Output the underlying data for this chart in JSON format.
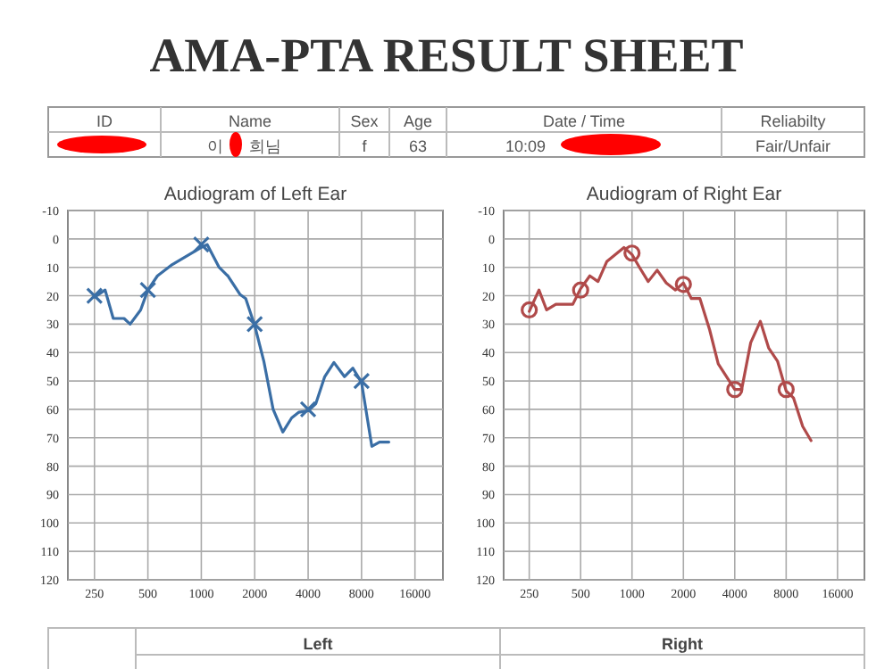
{
  "chart_data": [
    {
      "type": "other",
      "title": "AMA-PTA RESULT SHEET",
      "categories": [
        "ID",
        "Name",
        "Sex",
        "Age",
        "Date / Time",
        "Reliabilty"
      ],
      "cell_labels": [
        [
          null,
          "이 희님",
          "f",
          "63",
          "10:09",
          "Fair/Unfair"
        ]
      ]
    },
    {
      "type": "line",
      "title": "Audiogram of Left Ear",
      "log": "x",
      "grid": true,
      "ylim": [
        120,
        -10
      ],
      "yticks": [
        -10,
        0,
        10,
        20,
        30,
        40,
        50,
        60,
        70,
        80,
        90,
        100,
        110,
        120
      ],
      "xlim": [
        177,
        23000
      ],
      "xticks": [
        250,
        500,
        1000,
        2000,
        4000,
        8000,
        16000
      ],
      "series": [
        {
          "type": "line",
          "color": "#3a6ea5",
          "marker": "none",
          "x": [
            250,
            287,
            319,
            367,
            397,
            455,
            500,
            566,
            686,
            1000,
            1080,
            1260,
            1410,
            1650,
            1780,
            2000,
            2250,
            2540,
            2880,
            3230,
            3550,
            4000,
            4420,
            4960,
            5590,
            6410,
            7150,
            8000,
            9140,
            10100,
            11400
          ],
          "values": [
            20.5,
            18,
            28,
            28,
            30,
            25,
            18,
            13,
            9,
            3,
            2,
            10,
            13,
            19.5,
            21,
            30.5,
            43,
            60,
            68,
            63,
            61,
            60.5,
            58,
            48.5,
            43.5,
            48.5,
            45.5,
            50.5,
            73,
            71.5,
            71.5
          ]
        },
        {
          "type": "scatter",
          "color": "#3a6ea5",
          "marker": "cross",
          "x": [
            250,
            500,
            1000,
            2000,
            4000,
            8000
          ],
          "values": [
            20,
            18,
            2,
            30,
            60,
            50
          ]
        }
      ]
    },
    {
      "type": "line",
      "title": "Audiogram of Right Ear",
      "log": "x",
      "grid": true,
      "ylim": [
        120,
        -10
      ],
      "yticks": [
        -10,
        0,
        10,
        20,
        30,
        40,
        50,
        60,
        70,
        80,
        90,
        100,
        110,
        120
      ],
      "xlim": [
        177,
        23000
      ],
      "xticks": [
        250,
        500,
        1000,
        2000,
        4000,
        8000,
        16000
      ],
      "series": [
        {
          "type": "line",
          "color": "#b04a4a",
          "marker": "none",
          "x": [
            250,
            285,
            316,
            358,
            450,
            500,
            566,
            632,
            711,
            897,
            1000,
            1106,
            1244,
            1404,
            1588,
            1797,
            2000,
            2228,
            2500,
            2850,
            3200,
            4000,
            4390,
            4960,
            5650,
            6330,
            7120,
            8000,
            8840,
            10000,
            11200
          ],
          "values": [
            25.5,
            18,
            25,
            23,
            23,
            17.5,
            13,
            15,
            8,
            3,
            5.5,
            10,
            15,
            11,
            15.5,
            18,
            15.5,
            21,
            21,
            32,
            44,
            53,
            53,
            36.5,
            29,
            38.5,
            43,
            53.5,
            56,
            66,
            71
          ]
        },
        {
          "type": "scatter",
          "color": "#b04a4a",
          "marker": "circle",
          "x": [
            250,
            500,
            1000,
            2000,
            4000,
            8000
          ],
          "values": [
            25,
            18,
            5,
            16,
            53,
            53
          ]
        }
      ]
    },
    {
      "type": "other",
      "categories": [
        "Left",
        "Right"
      ]
    }
  ]
}
